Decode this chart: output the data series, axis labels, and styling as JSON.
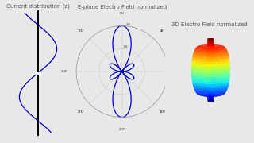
{
  "title1": "Current distribution (z)",
  "title2": "E-plane Electro Field normalized",
  "title3": "3D Electro Field normalized",
  "bg_color": "#e8e8e8",
  "line_color_current": "#0000cc",
  "line_color_dipole": "#0000cc",
  "title_fontsize": 5.0,
  "title_color": "#555555",
  "kL": 7.854,
  "current_kL": 7.854
}
